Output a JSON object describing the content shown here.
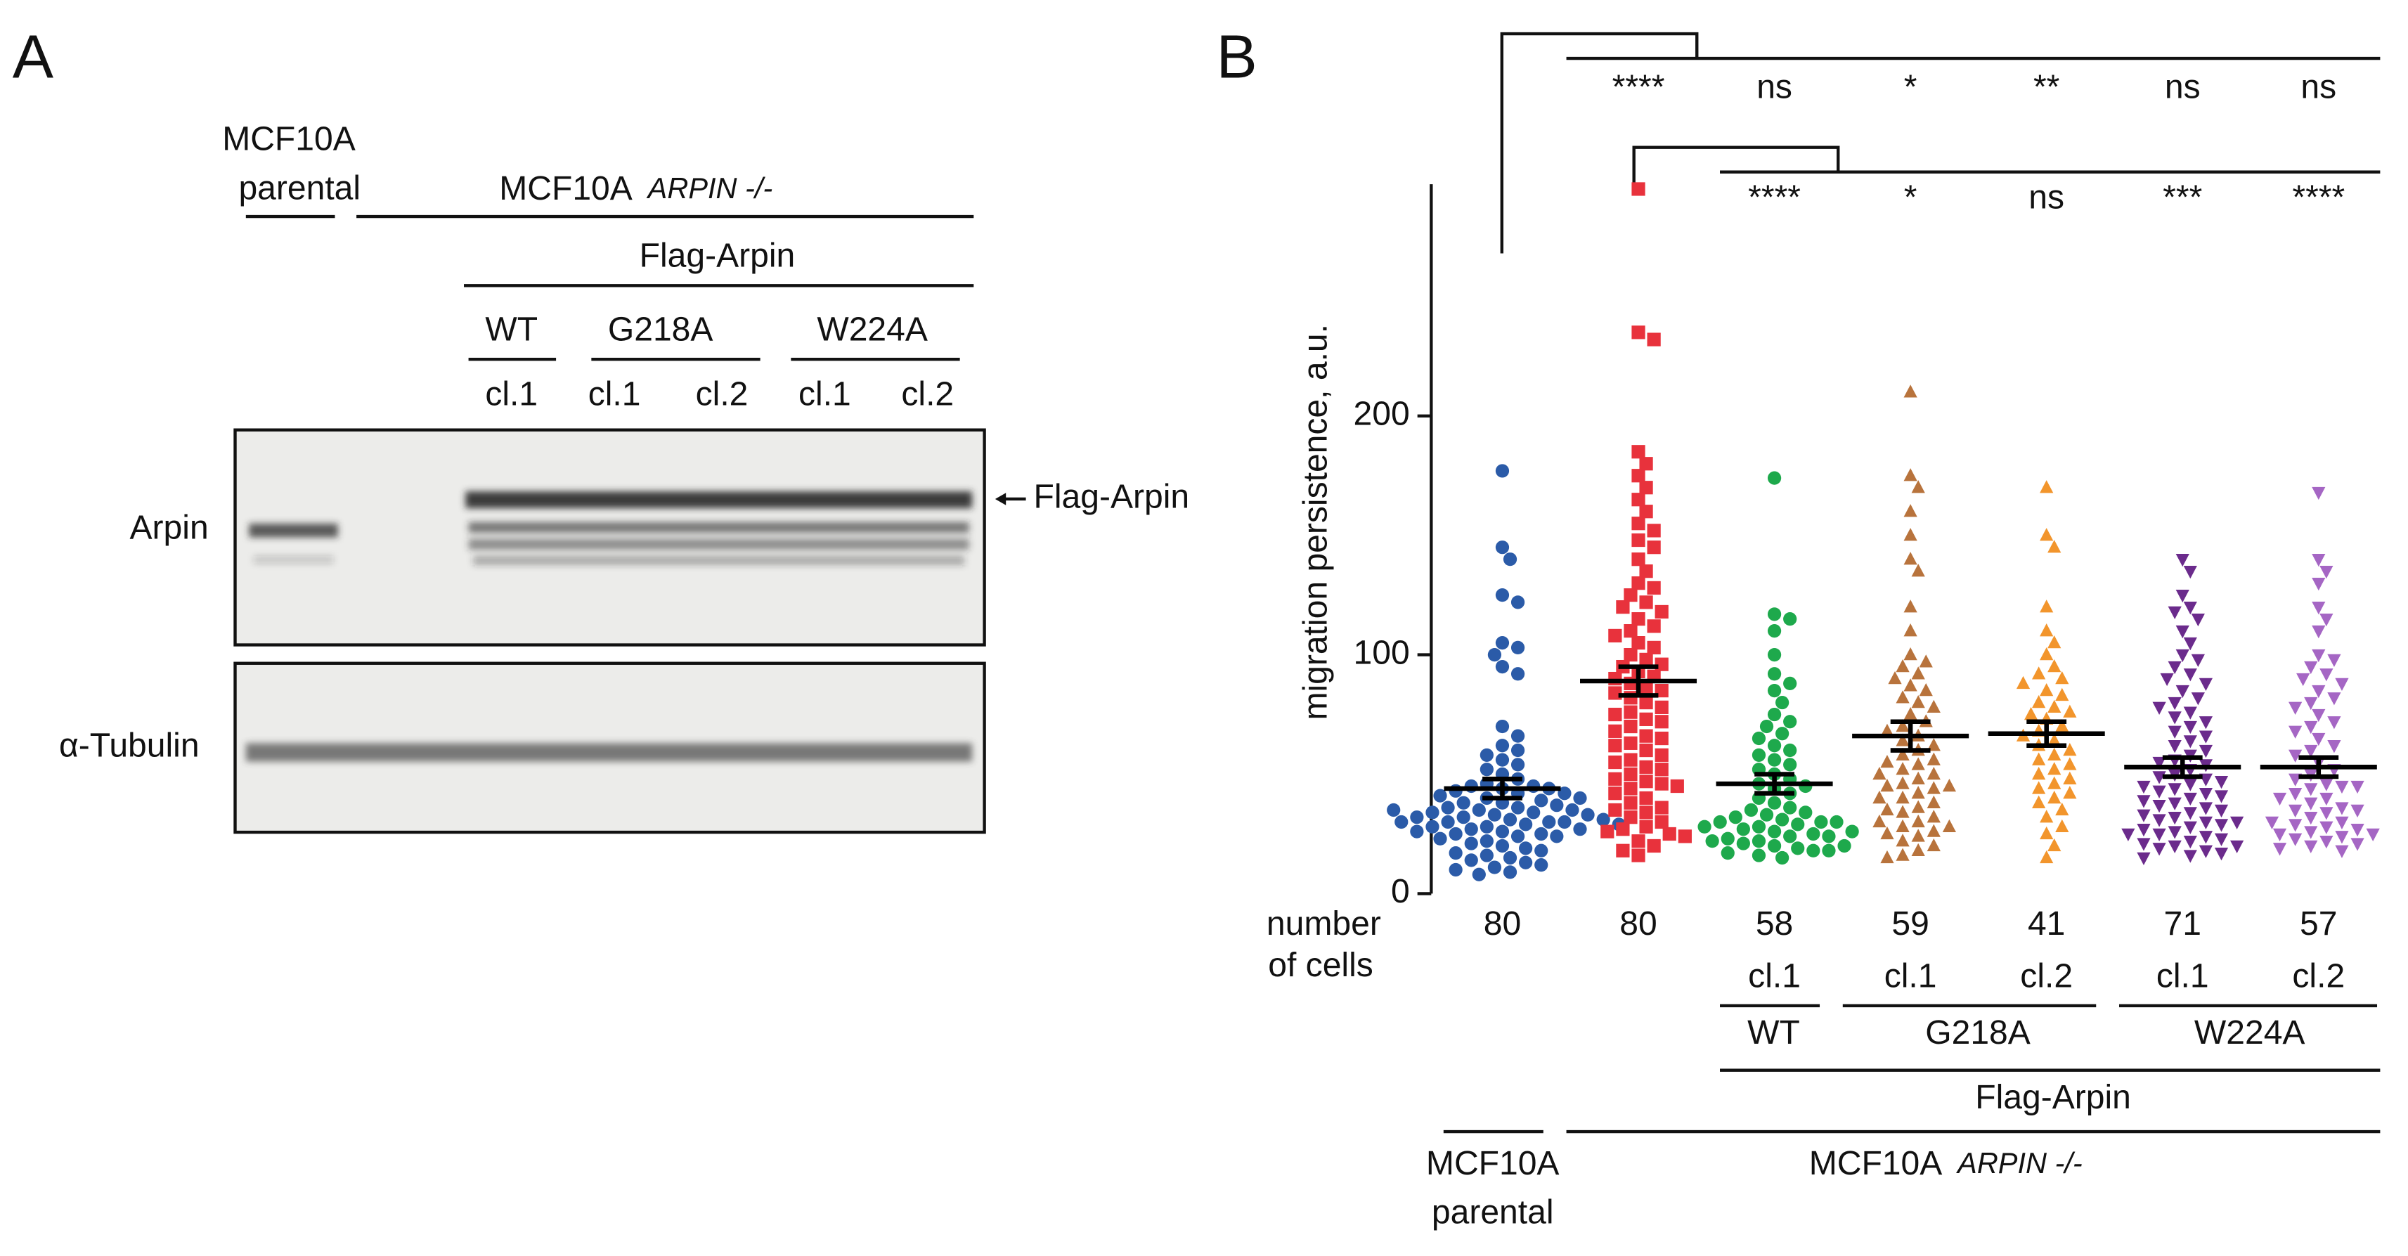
{
  "panel_a": {
    "label": "A",
    "parental": [
      "MCF10A",
      "parental"
    ],
    "knockout": {
      "line": "MCF10A",
      "gene": "ARPIN -/-"
    },
    "construct": "Flag-Arpin",
    "mutants": [
      "WT",
      "G218A",
      "W224A"
    ],
    "clones": [
      "cl.1",
      "cl.1",
      "cl.2",
      "cl.1",
      "cl.2"
    ],
    "blots": [
      {
        "label": "Arpin",
        "annotation": "Flag-Arpin"
      },
      {
        "label": "α-Tubulin"
      }
    ]
  },
  "chart_data": {
    "type": "dot",
    "panel_label": "B",
    "y_label": "migration persistence, a.u.",
    "ylim": [
      0,
      297
    ],
    "yticks": [
      0,
      100,
      200
    ],
    "count_label": [
      "number",
      "of cells"
    ],
    "counts": [
      80,
      80,
      58,
      59,
      41,
      71,
      57
    ],
    "clones": [
      null,
      null,
      "cl.1",
      "cl.1",
      "cl.2",
      "cl.1",
      "cl.2"
    ],
    "mutants": [
      "WT",
      "G218A",
      "W224A"
    ],
    "construct": "Flag-Arpin",
    "parental": [
      "MCF10A",
      "parental"
    ],
    "knockout": {
      "line": "MCF10A",
      "gene": "ARPIN -/-"
    },
    "significance": [
      [
        "****",
        "ns",
        "*",
        "**",
        "ns",
        "ns"
      ],
      [
        "****",
        "*",
        "ns",
        "***",
        "****"
      ]
    ],
    "series": [
      {
        "color": "#2b5ba8",
        "marker": "circle",
        "mean": 44,
        "sem": 4,
        "values": [
          177,
          145,
          140,
          125,
          122,
          105,
          103,
          100,
          95,
          92,
          70,
          66,
          62,
          60,
          58,
          56,
          54,
          52,
          50,
          48,
          46,
          45,
          44,
          42,
          40,
          38,
          36,
          35,
          34,
          33,
          32,
          31,
          30,
          30,
          29,
          28,
          27,
          26,
          25,
          24,
          45,
          44,
          43,
          42,
          41,
          40,
          39,
          38,
          37,
          36,
          35,
          34,
          33,
          32,
          31,
          30,
          30,
          29,
          28,
          27,
          26,
          25,
          24,
          23,
          22,
          21,
          20,
          19,
          18,
          17,
          16,
          15,
          14,
          13,
          12,
          11,
          10,
          9,
          8,
          35
        ]
      },
      {
        "color": "#e8323c",
        "marker": "square",
        "mean": 89,
        "sem": 6,
        "values": [
          295,
          235,
          232,
          185,
          180,
          175,
          170,
          165,
          160,
          155,
          152,
          148,
          145,
          140,
          135,
          130,
          128,
          125,
          122,
          120,
          118,
          115,
          112,
          110,
          108,
          105,
          103,
          100,
          98,
          96,
          95,
          93,
          91,
          90,
          88,
          86,
          85,
          84,
          82,
          80,
          78,
          76,
          75,
          73,
          72,
          70,
          68,
          66,
          65,
          63,
          62,
          60,
          58,
          56,
          55,
          53,
          52,
          50,
          48,
          47,
          46,
          45,
          44,
          42,
          40,
          38,
          36,
          35,
          34,
          32,
          30,
          28,
          27,
          26,
          25,
          24,
          22,
          20,
          18,
          16
        ]
      },
      {
        "color": "#1ea94c",
        "marker": "circle",
        "mean": 46,
        "sem": 4,
        "values": [
          174,
          117,
          115,
          110,
          100,
          92,
          88,
          85,
          80,
          75,
          72,
          70,
          67,
          65,
          62,
          60,
          58,
          56,
          54,
          52,
          50,
          48,
          46,
          45,
          44,
          42,
          40,
          38,
          36,
          35,
          34,
          33,
          32,
          31,
          30,
          30,
          29,
          28,
          27,
          26,
          25,
          24,
          23,
          22,
          21,
          20,
          19,
          18,
          17,
          16,
          15,
          30,
          28,
          26,
          24,
          22,
          20,
          18
        ]
      },
      {
        "color": "#b8733c",
        "marker": "triangle-up",
        "mean": 66,
        "sem": 6,
        "values": [
          210,
          175,
          170,
          160,
          150,
          140,
          135,
          120,
          110,
          100,
          97,
          95,
          92,
          90,
          87,
          85,
          82,
          80,
          78,
          75,
          72,
          70,
          68,
          66,
          64,
          62,
          60,
          58,
          56,
          54,
          52,
          50,
          48,
          46,
          45,
          44,
          42,
          40,
          38,
          36,
          34,
          32,
          30,
          28,
          26,
          25,
          24,
          22,
          20,
          18,
          16,
          15,
          35,
          30,
          40,
          45,
          50,
          55,
          28
        ]
      },
      {
        "color": "#f2952c",
        "marker": "triangle-up",
        "mean": 67,
        "sem": 5,
        "values": [
          170,
          150,
          145,
          120,
          110,
          105,
          100,
          95,
          92,
          90,
          88,
          85,
          83,
          80,
          78,
          76,
          75,
          73,
          70,
          68,
          66,
          64,
          62,
          60,
          58,
          56,
          54,
          52,
          50,
          48,
          46,
          44,
          42,
          40,
          38,
          35,
          32,
          28,
          25,
          20,
          15
        ]
      },
      {
        "color": "#6b2b8c",
        "marker": "triangle-down",
        "mean": 53,
        "sem": 4,
        "values": [
          140,
          135,
          125,
          120,
          118,
          115,
          110,
          105,
          100,
          98,
          95,
          92,
          90,
          88,
          85,
          82,
          80,
          78,
          76,
          74,
          72,
          70,
          68,
          66,
          64,
          62,
          60,
          58,
          56,
          55,
          54,
          52,
          50,
          49,
          48,
          47,
          46,
          45,
          44,
          43,
          42,
          41,
          40,
          39,
          38,
          37,
          36,
          35,
          34,
          33,
          32,
          31,
          30,
          29,
          28,
          27,
          26,
          25,
          24,
          23,
          22,
          21,
          20,
          19,
          18,
          17,
          16,
          15,
          30,
          25,
          20
        ]
      },
      {
        "color": "#a566c4",
        "marker": "triangle-down",
        "mean": 53,
        "sem": 4,
        "values": [
          168,
          140,
          135,
          130,
          120,
          115,
          110,
          100,
          98,
          95,
          92,
          90,
          88,
          85,
          82,
          80,
          78,
          75,
          72,
          70,
          68,
          65,
          62,
          60,
          58,
          55,
          52,
          50,
          48,
          46,
          45,
          44,
          42,
          40,
          38,
          36,
          35,
          34,
          32,
          30,
          29,
          28,
          27,
          26,
          25,
          24,
          23,
          22,
          21,
          20,
          19,
          18,
          30,
          35,
          40,
          45,
          25
        ]
      }
    ]
  }
}
